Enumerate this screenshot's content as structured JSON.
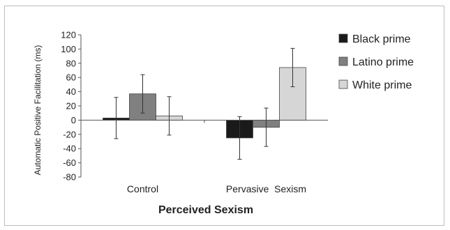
{
  "chart_data": {
    "type": "bar",
    "categories": [
      "Control",
      "Pervasive  Sexism"
    ],
    "series": [
      {
        "name": "Black prime",
        "color": "#1a1a1a",
        "values": [
          3,
          -25
        ],
        "errors": [
          29,
          30
        ]
      },
      {
        "name": "Latino prime",
        "color": "#808080",
        "values": [
          37,
          -10
        ],
        "errors": [
          27,
          27
        ]
      },
      {
        "name": "White prime",
        "color": "#d6d6d6",
        "values": [
          6,
          74
        ],
        "errors": [
          27,
          27
        ]
      }
    ],
    "xlabel": "Perceived Sexism",
    "ylabel": "Automatic Positive Facilitation (ms)",
    "ylim": [
      -80,
      120
    ],
    "yticks": [
      120,
      100,
      80,
      60,
      40,
      20,
      0,
      -20,
      -40,
      -60,
      -80
    ],
    "legend_position": "right",
    "grid": false
  }
}
